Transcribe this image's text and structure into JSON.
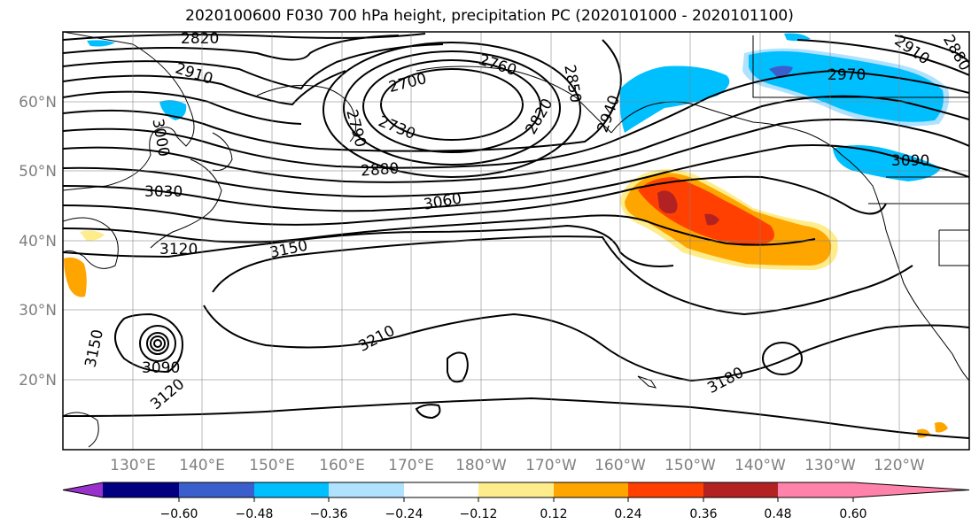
{
  "title": "2020100600 F030 700 hPa height, precipitation PC (2020101000 - 2020101100)",
  "lat_labels": [
    "60°N",
    "50°N",
    "40°N",
    "30°N",
    "20°N"
  ],
  "lon_labels": [
    "130°E",
    "140°E",
    "150°E",
    "160°E",
    "170°E",
    "180°W",
    "170°W",
    "160°W",
    "150°W",
    "140°W",
    "130°W",
    "120°W"
  ],
  "contour_labels": [
    "2820",
    "2910",
    "3000",
    "3030",
    "3120",
    "3150",
    "2700",
    "2760",
    "2850",
    "2790",
    "2730",
    "2820",
    "2880",
    "3060",
    "2940",
    "2970",
    "2910",
    "2880",
    "3090",
    "3210",
    "3180",
    "3150",
    "3090",
    "3120"
  ],
  "colorbar": {
    "tick_labels": [
      "−0.60",
      "−0.48",
      "−0.36",
      "−0.24",
      "−0.12",
      "0.12",
      "0.24",
      "0.36",
      "0.48",
      "0.60"
    ],
    "colors": [
      "#9932cc",
      "#000080",
      "#3a5fcd",
      "#00bfff",
      "#b0e2ff",
      "#ffffff",
      "#ffec8b",
      "#ffa500",
      "#ff4000",
      "#b22222",
      "#ff82ab"
    ]
  },
  "shading_colors": {
    "pos_low": "#ffec8b",
    "pos_mid": "#ffa500",
    "pos_high": "#ff4000",
    "pos_max": "#b22222",
    "neg_low": "#b0e2ff",
    "neg_mid": "#00bfff",
    "neg_high": "#3a5fcd"
  }
}
